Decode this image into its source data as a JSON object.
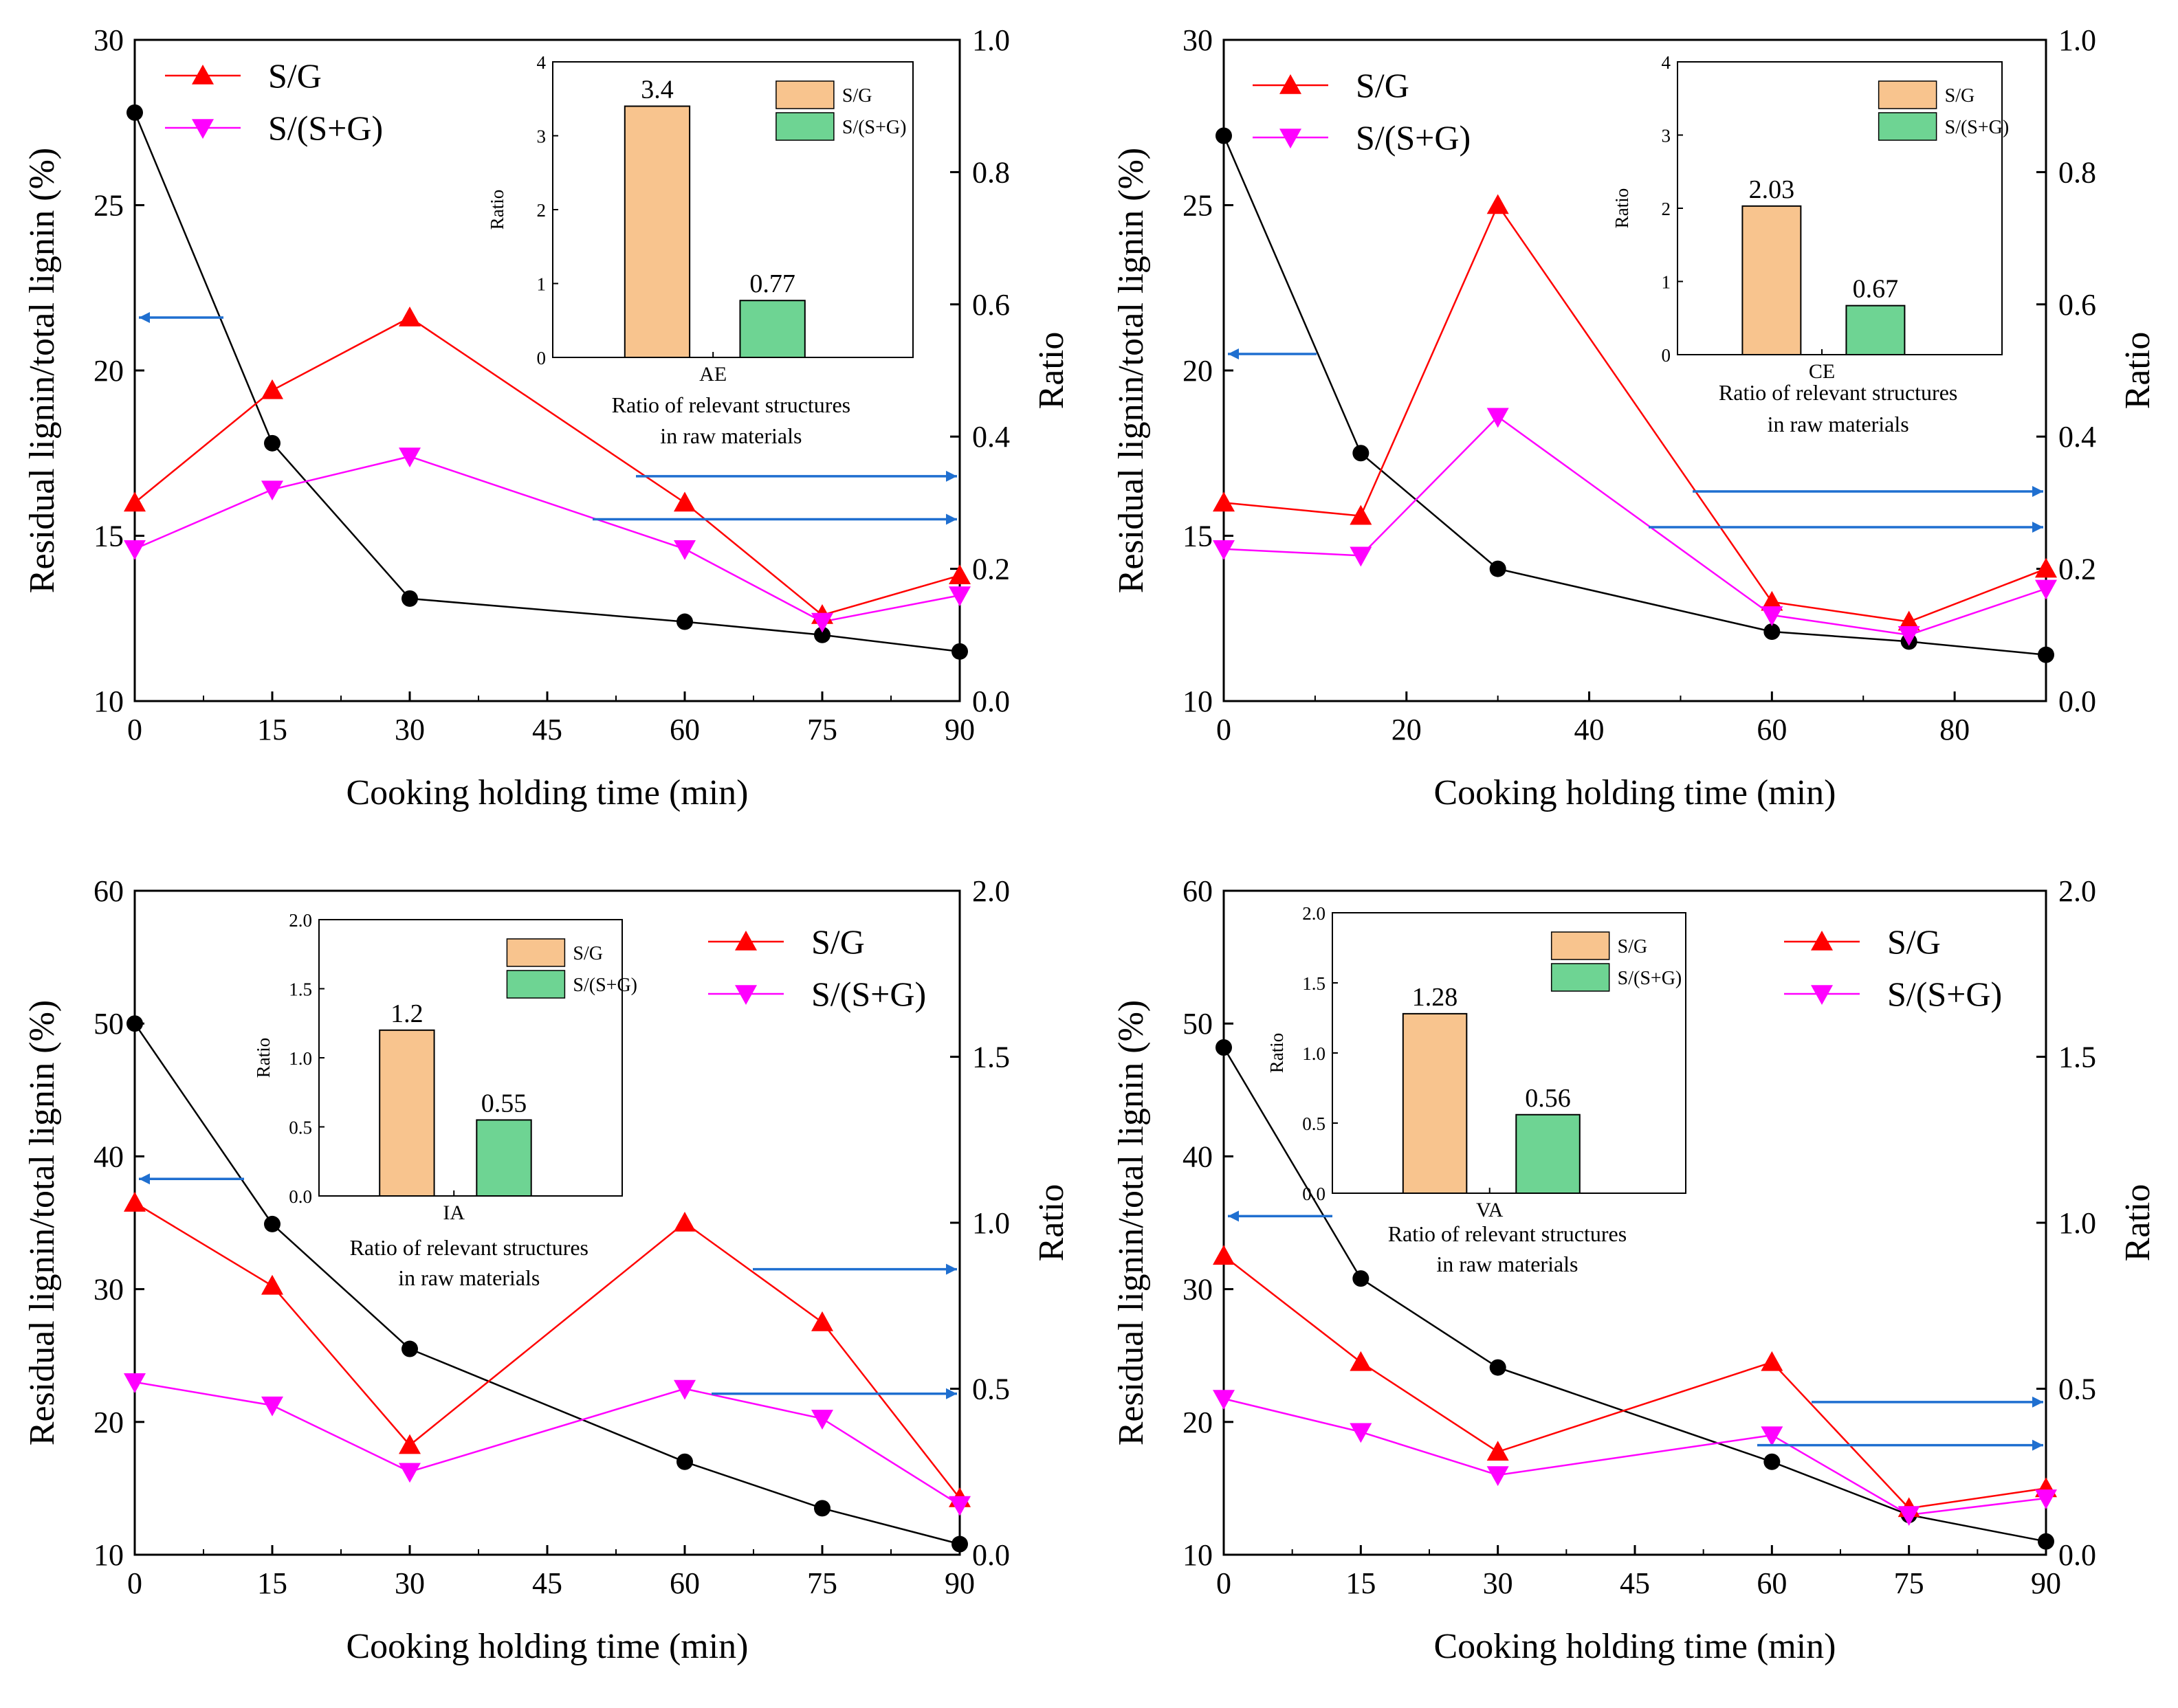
{
  "colors": {
    "residual": "#000000",
    "sg": "#ff0000",
    "ssg": "#ff00ff",
    "arrow": "#1f6fd0",
    "bar_sg": "#f8c48e",
    "bar_ssg": "#6ed493"
  },
  "chart_data": [
    {
      "id": "AE",
      "type": "line",
      "xlabel": "Cooking holding time (min)",
      "ylabel_left": "Residual lignin/total lignin (%)",
      "ylabel_right": "Ratio",
      "xlim": [
        0,
        90
      ],
      "xticks": [
        0,
        15,
        30,
        45,
        60,
        75,
        90
      ],
      "ylim_left": [
        10,
        30
      ],
      "yticks_left": [
        10,
        15,
        20,
        25,
        30
      ],
      "ylim_right": [
        0,
        1.0
      ],
      "yticks_right": [
        "0.0",
        "0.2",
        "0.4",
        "0.6",
        "0.8",
        "1.0"
      ],
      "legend_pos": "top-left",
      "x": [
        0,
        15,
        30,
        60,
        75,
        90
      ],
      "residual": [
        27.8,
        17.8,
        13.1,
        12.4,
        12.0,
        11.5
      ],
      "sg": [
        0.3,
        0.47,
        0.58,
        0.3,
        0.13,
        0.19
      ],
      "ssg": [
        0.23,
        0.32,
        0.37,
        0.23,
        0.12,
        0.16
      ],
      "legend": [
        "S/G",
        "S/(S+G)"
      ],
      "inset": {
        "ylim": [
          0,
          4
        ],
        "yticks": [
          "0",
          "1",
          "2",
          "3",
          "4"
        ],
        "ylabel": "Ratio",
        "category": "AE",
        "values": [
          3.4,
          0.77
        ],
        "labels": [
          "3.4",
          "0.77"
        ],
        "legend": [
          "S/G",
          "S/(S+G)"
        ],
        "caption": [
          "Ratio of relevant structures",
          "in raw materials"
        ]
      }
    },
    {
      "id": "CE",
      "type": "line",
      "xlabel": "Cooking holding time (min)",
      "ylabel_left": "Residual lignin/total lignin (%)",
      "ylabel_right": "Ratio",
      "xlim": [
        0,
        90
      ],
      "xticks": [
        0,
        20,
        40,
        60,
        80
      ],
      "ylim_left": [
        10,
        30
      ],
      "yticks_left": [
        10,
        15,
        20,
        25,
        30
      ],
      "ylim_right": [
        0,
        1.0
      ],
      "yticks_right": [
        "0.0",
        "0.2",
        "0.4",
        "0.6",
        "0.8",
        "1.0"
      ],
      "legend_pos": "top-left",
      "x": [
        0,
        15,
        30,
        60,
        75,
        90
      ],
      "residual": [
        27.1,
        17.5,
        14.0,
        12.1,
        11.8,
        11.4
      ],
      "sg": [
        0.3,
        0.28,
        0.75,
        0.15,
        0.12,
        0.2
      ],
      "ssg": [
        0.23,
        0.22,
        0.43,
        0.13,
        0.1,
        0.17
      ],
      "legend": [
        "S/G",
        "S/(S+G)"
      ],
      "inset": {
        "ylim": [
          0,
          4
        ],
        "yticks": [
          "0",
          "1",
          "2",
          "3",
          "4"
        ],
        "ylabel": "Ratio",
        "category": "CE",
        "values": [
          2.03,
          0.67
        ],
        "labels": [
          "2.03",
          "0.67"
        ],
        "legend": [
          "S/G",
          "S/(S+G)"
        ],
        "caption": [
          "Ratio of relevant structures",
          "in raw materials"
        ]
      }
    },
    {
      "id": "IA",
      "type": "line",
      "xlabel": "Cooking holding time (min)",
      "ylabel_left": "Residual lignin/total lignin (%)",
      "ylabel_right": "Ratio",
      "xlim": [
        0,
        90
      ],
      "xticks": [
        0,
        15,
        30,
        45,
        60,
        75,
        90
      ],
      "ylim_left": [
        10,
        60
      ],
      "yticks_left": [
        10,
        20,
        30,
        40,
        50,
        60
      ],
      "ylim_right": [
        0,
        2.0
      ],
      "yticks_right": [
        "0.0",
        "0.5",
        "1.0",
        "1.5",
        "2.0"
      ],
      "legend_pos": "top-right",
      "x": [
        0,
        15,
        30,
        60,
        75,
        90
      ],
      "residual": [
        50.0,
        34.9,
        25.5,
        17.0,
        13.5,
        10.8
      ],
      "sg": [
        1.06,
        0.81,
        0.33,
        1.0,
        0.7,
        0.17
      ],
      "ssg": [
        0.52,
        0.45,
        0.25,
        0.5,
        0.41,
        0.15
      ],
      "legend": [
        "S/G",
        "S/(S+G)"
      ],
      "inset": {
        "ylim": [
          0,
          2.0
        ],
        "yticks": [
          "0.0",
          "0.5",
          "1.0",
          "1.5",
          "2.0"
        ],
        "ylabel": "Ratio",
        "category": "IA",
        "values": [
          1.2,
          0.55
        ],
        "labels": [
          "1.2",
          "0.55"
        ],
        "legend": [
          "S/G",
          "S/(S+G)"
        ],
        "caption": [
          "Ratio of relevant structures",
          "in raw materials"
        ]
      }
    },
    {
      "id": "VA",
      "type": "line",
      "xlabel": "Cooking holding time (min)",
      "ylabel_left": "Residual lignin/total lignin (%)",
      "ylabel_right": "Ratio",
      "xlim": [
        0,
        90
      ],
      "xticks": [
        0,
        15,
        30,
        45,
        60,
        75,
        90
      ],
      "ylim_left": [
        10,
        60
      ],
      "yticks_left": [
        10,
        20,
        30,
        40,
        50,
        60
      ],
      "ylim_right": [
        0,
        2.0
      ],
      "yticks_right": [
        "0.0",
        "0.5",
        "1.0",
        "1.5",
        "2.0"
      ],
      "legend_pos": "top-right",
      "x": [
        0,
        15,
        30,
        60,
        75,
        90
      ],
      "residual": [
        48.2,
        30.8,
        24.1,
        17.0,
        13.0,
        11.0
      ],
      "sg": [
        0.9,
        0.58,
        0.31,
        0.58,
        0.14,
        0.2
      ],
      "ssg": [
        0.47,
        0.37,
        0.24,
        0.36,
        0.12,
        0.17
      ],
      "legend": [
        "S/G",
        "S/(S+G)"
      ],
      "inset": {
        "ylim": [
          0,
          2.0
        ],
        "yticks": [
          "0.0",
          "0.5",
          "1.0",
          "1.5",
          "2.0"
        ],
        "ylabel": "Ratio",
        "category": "VA",
        "values": [
          1.28,
          0.56
        ],
        "labels": [
          "1.28",
          "0.56"
        ],
        "legend": [
          "S/G",
          "S/(S+G)"
        ],
        "caption": [
          "Ratio of relevant structures",
          "in raw materials"
        ]
      }
    }
  ]
}
